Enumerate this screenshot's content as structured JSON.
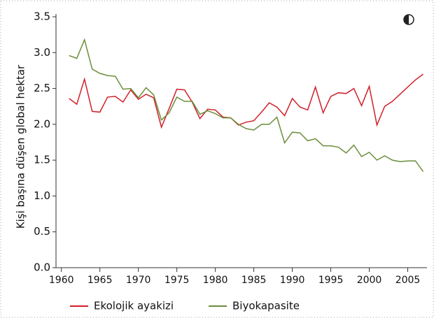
{
  "chart_data": {
    "type": "line",
    "ylabel": "Kişi başına düşen global hektar",
    "x": [
      1961,
      1962,
      1963,
      1964,
      1965,
      1966,
      1967,
      1968,
      1969,
      1970,
      1971,
      1972,
      1973,
      1974,
      1975,
      1976,
      1977,
      1978,
      1979,
      1980,
      1981,
      1982,
      1983,
      1984,
      1985,
      1986,
      1987,
      1988,
      1989,
      1990,
      1991,
      1992,
      1993,
      1994,
      1995,
      1996,
      1997,
      1998,
      1999,
      2000,
      2001,
      2002,
      2003,
      2004,
      2005,
      2006,
      2007
    ],
    "series": [
      {
        "name": "Ekolojik ayakizi",
        "color": "#d0202a",
        "values": [
          2.36,
          2.28,
          2.63,
          2.18,
          2.17,
          2.38,
          2.39,
          2.31,
          2.48,
          2.35,
          2.42,
          2.37,
          1.96,
          2.22,
          2.49,
          2.48,
          2.31,
          2.08,
          2.21,
          2.2,
          2.1,
          2.09,
          1.99,
          2.03,
          2.05,
          2.17,
          2.3,
          2.24,
          2.12,
          2.36,
          2.24,
          2.2,
          2.52,
          2.16,
          2.39,
          2.44,
          2.43,
          2.5,
          2.26,
          2.53,
          1.99,
          2.25,
          2.32,
          2.42,
          2.52,
          2.62,
          2.7
        ]
      },
      {
        "name": "Biyokapasite",
        "color": "#6b8e3a",
        "values": [
          2.96,
          2.92,
          3.18,
          2.77,
          2.71,
          2.68,
          2.67,
          2.49,
          2.5,
          2.37,
          2.51,
          2.41,
          2.06,
          2.16,
          2.38,
          2.32,
          2.32,
          2.14,
          2.19,
          2.15,
          2.09,
          2.09,
          2.0,
          1.94,
          1.92,
          2.0,
          2.0,
          2.1,
          1.74,
          1.89,
          1.88,
          1.77,
          1.8,
          1.7,
          1.7,
          1.68,
          1.6,
          1.71,
          1.55,
          1.61,
          1.5,
          1.56,
          1.5,
          1.48,
          1.49,
          1.49,
          1.34
        ]
      }
    ],
    "xlim": [
      1959.3,
      2007.5
    ],
    "xticks": [
      1960,
      1965,
      1970,
      1975,
      1980,
      1985,
      1990,
      1995,
      2000,
      2005
    ],
    "ylim": [
      0,
      3.5
    ],
    "yticks": [
      {
        "value": 0,
        "label": "0.0"
      },
      0.5,
      {
        "value": 1,
        "label": "1.0"
      },
      1.5,
      {
        "value": 2,
        "label": "2.0"
      },
      2.5,
      {
        "value": 3,
        "label": "3.0"
      },
      3.5
    ],
    "legend": "bottom"
  }
}
